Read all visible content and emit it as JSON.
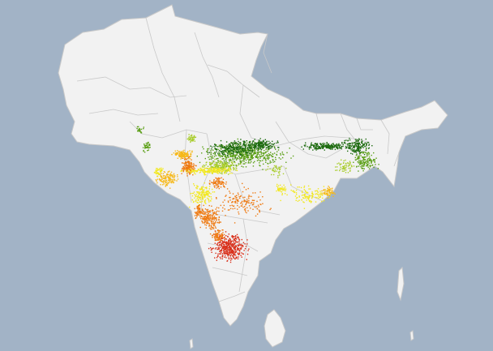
{
  "map": {
    "colors": {
      "ocean": "#a2b3c6",
      "land": "#f2f2f2",
      "border": "#c9c9c9",
      "neighbor_land": "#f4f4f4"
    },
    "legend": null,
    "density_classes": [
      {
        "key": "very-high",
        "color": "#1d6b0f"
      },
      {
        "key": "high",
        "color": "#5ca018"
      },
      {
        "key": "medium-high",
        "color": "#a8cc2a"
      },
      {
        "key": "medium",
        "color": "#f2e81e"
      },
      {
        "key": "medium-low",
        "color": "#f6b81a"
      },
      {
        "key": "low",
        "color": "#ef7a12"
      },
      {
        "key": "very-low",
        "color": "#d9301b"
      }
    ]
  }
}
